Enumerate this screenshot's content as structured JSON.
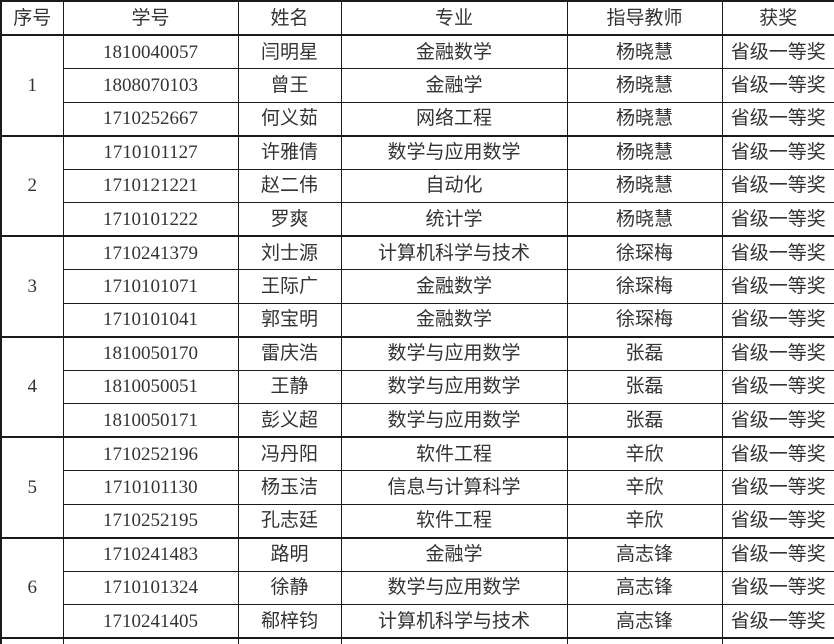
{
  "table": {
    "headers": [
      "序号",
      "学号",
      "姓名",
      "专业",
      "指导教师",
      "获奖"
    ],
    "groups": [
      {
        "index": "1",
        "rows": [
          [
            "1810040057",
            "闫明星",
            "金融数学",
            "杨晓慧",
            "省级一等奖"
          ],
          [
            "1808070103",
            "曾王",
            "金融学",
            "杨晓慧",
            "省级一等奖"
          ],
          [
            "1710252667",
            "何义茹",
            "网络工程",
            "杨晓慧",
            "省级一等奖"
          ]
        ]
      },
      {
        "index": "2",
        "rows": [
          [
            "1710101127",
            "许雅倩",
            "数学与应用数学",
            "杨晓慧",
            "省级一等奖"
          ],
          [
            "1710121221",
            "赵二伟",
            "自动化",
            "杨晓慧",
            "省级一等奖"
          ],
          [
            "1710101222",
            "罗爽",
            "统计学",
            "杨晓慧",
            "省级一等奖"
          ]
        ]
      },
      {
        "index": "3",
        "rows": [
          [
            "1710241379",
            "刘士源",
            "计算机科学与技术",
            "徐琛梅",
            "省级一等奖"
          ],
          [
            "1710101071",
            "王际广",
            "金融数学",
            "徐琛梅",
            "省级一等奖"
          ],
          [
            "1710101041",
            "郭宝明",
            "金融数学",
            "徐琛梅",
            "省级一等奖"
          ]
        ]
      },
      {
        "index": "4",
        "rows": [
          [
            "1810050170",
            "雷庆浩",
            "数学与应用数学",
            "张磊",
            "省级一等奖"
          ],
          [
            "1810050051",
            "王静",
            "数学与应用数学",
            "张磊",
            "省级一等奖"
          ],
          [
            "1810050171",
            "彭义超",
            "数学与应用数学",
            "张磊",
            "省级一等奖"
          ]
        ]
      },
      {
        "index": "5",
        "rows": [
          [
            "1710252196",
            "冯丹阳",
            "软件工程",
            "辛欣",
            "省级一等奖"
          ],
          [
            "1710101130",
            "杨玉洁",
            "信息与计算科学",
            "辛欣",
            "省级一等奖"
          ],
          [
            "1710252195",
            "孔志廷",
            "软件工程",
            "辛欣",
            "省级一等奖"
          ]
        ]
      },
      {
        "index": "6",
        "rows": [
          [
            "1710241483",
            "路明",
            "金融学",
            "高志锋",
            "省级一等奖"
          ],
          [
            "1710101324",
            "徐静",
            "数学与应用数学",
            "高志锋",
            "省级一等奖"
          ],
          [
            "1710241405",
            "郗梓钧",
            "计算机科学与技术",
            "高志锋",
            "省级一等奖"
          ]
        ]
      }
    ]
  },
  "colors": {
    "border": "#1a1a1a",
    "text": "#333333",
    "background": "#ffffff"
  }
}
